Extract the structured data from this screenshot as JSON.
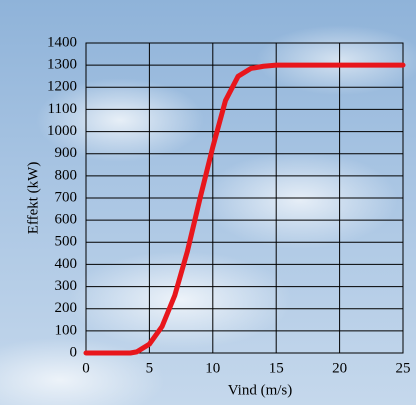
{
  "chart_data": {
    "type": "line",
    "x_label": "Vind (m/s)",
    "y_label": "Effekt (kW)",
    "x": [
      0,
      1,
      2,
      3,
      3.5,
      4,
      5,
      6,
      7,
      8,
      9,
      10,
      11,
      12,
      13,
      14,
      15,
      20,
      25
    ],
    "values": [
      0,
      0,
      0,
      0,
      0,
      5,
      40,
      120,
      260,
      460,
      700,
      930,
      1140,
      1250,
      1285,
      1295,
      1300,
      1300,
      1300
    ],
    "color": "#e8161c",
    "xlim": [
      0,
      25
    ],
    "xticks": [
      0,
      5,
      10,
      15,
      20,
      25
    ],
    "ylim": [
      0,
      1400
    ],
    "yticks": [
      0,
      100,
      200,
      300,
      400,
      500,
      600,
      700,
      800,
      900,
      1000,
      1100,
      1200,
      1300,
      1400
    ],
    "grid": true
  }
}
